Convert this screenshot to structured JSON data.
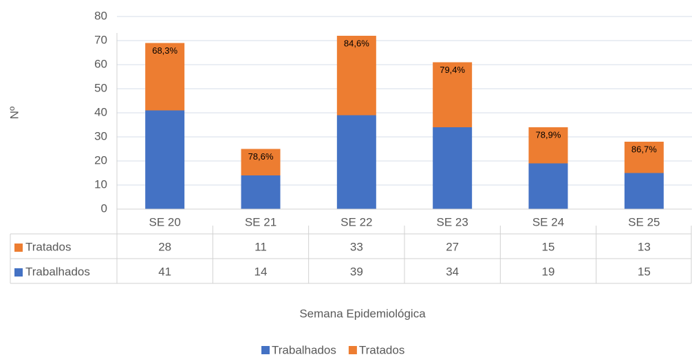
{
  "chart_data": {
    "type": "bar",
    "stacked": true,
    "y_label": "Nº",
    "x_label": "Semana Epidemiológica",
    "categories": [
      "SE 20",
      "SE 21",
      "SE 22",
      "SE 23",
      "SE 24",
      "SE 25"
    ],
    "series": [
      {
        "name": "Trabalhados",
        "color": "#4472c4",
        "values": [
          41,
          14,
          39,
          34,
          19,
          15
        ]
      },
      {
        "name": "Tratados",
        "color": "#ed7d31",
        "values": [
          28,
          11,
          33,
          27,
          15,
          13
        ],
        "annotations": [
          "68,3%",
          "78,6%",
          "84,6%",
          "79,4%",
          "78,9%",
          "86,7%"
        ]
      }
    ],
    "ylim": [
      0,
      80
    ],
    "yticks": [
      0,
      10,
      20,
      30,
      40,
      50,
      60,
      70,
      80
    ],
    "grid": true,
    "legend": "bottom"
  }
}
